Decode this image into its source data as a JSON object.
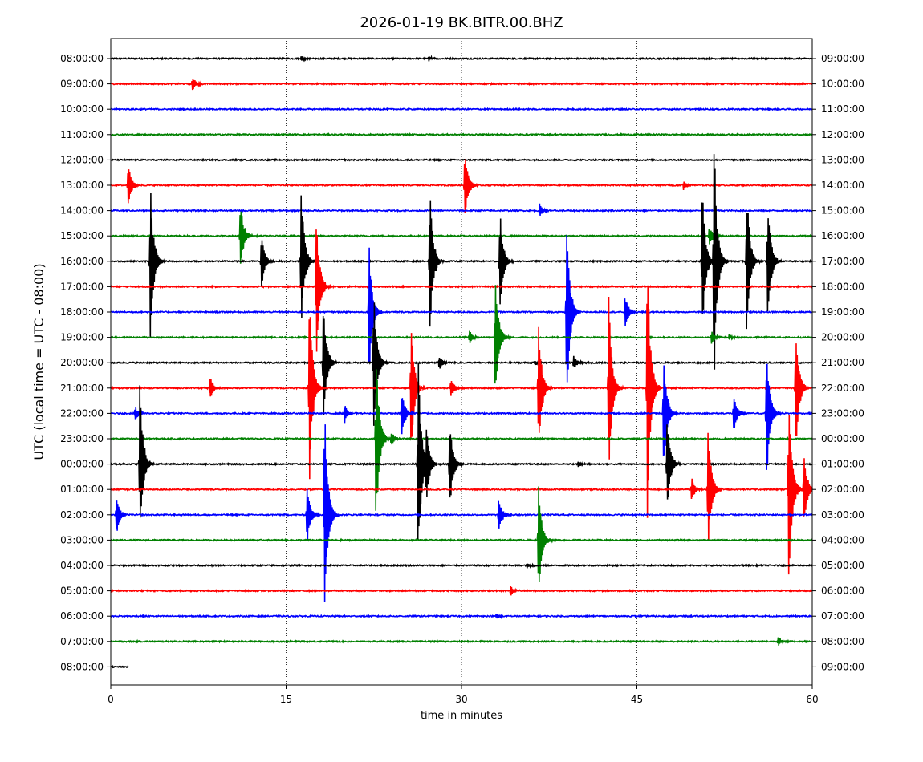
{
  "chart_data": {
    "type": "line",
    "title": "2026-01-19 BK.BITR.00.BHZ",
    "xlabel": "time in minutes",
    "ylabel": "UTC (local time = UTC - 08:00)",
    "xlim": [
      0,
      60
    ],
    "xticks": [
      "0",
      "15",
      "30",
      "45",
      "60"
    ],
    "grid": "vertical dotted at x-ticks",
    "trace_colors": [
      "#000000",
      "#ff0000",
      "#0000ff",
      "#008000"
    ],
    "rows": [
      {
        "left": "08:00:00",
        "right": "09:00:00",
        "events": [
          {
            "t": 16.3,
            "amp": 0.1
          },
          {
            "t": 27.2,
            "amp": 0.1
          }
        ]
      },
      {
        "left": "09:00:00",
        "right": "10:00:00",
        "events": [
          {
            "t": 7.0,
            "amp": 0.3
          }
        ]
      },
      {
        "left": "10:00:00",
        "right": "11:00:00",
        "events": []
      },
      {
        "left": "11:00:00",
        "right": "12:00:00",
        "events": []
      },
      {
        "left": "12:00:00",
        "right": "13:00:00",
        "events": []
      },
      {
        "left": "13:00:00",
        "right": "14:00:00",
        "events": [
          {
            "t": 1.5,
            "amp": 0.9
          },
          {
            "t": 30.3,
            "amp": 1.4
          },
          {
            "t": 49.0,
            "amp": 0.2
          }
        ]
      },
      {
        "left": "14:00:00",
        "right": "15:00:00",
        "events": [
          {
            "t": 36.7,
            "amp": 0.3
          }
        ]
      },
      {
        "left": "15:00:00",
        "right": "16:00:00",
        "events": [
          {
            "t": 11.1,
            "amp": 1.4
          },
          {
            "t": 51.2,
            "amp": 0.4
          }
        ]
      },
      {
        "left": "16:00:00",
        "right": "17:00:00",
        "events": [
          {
            "t": 3.4,
            "amp": 3.2
          },
          {
            "t": 12.9,
            "amp": 1.1
          },
          {
            "t": 16.3,
            "amp": 3.0
          },
          {
            "t": 27.3,
            "amp": 3.0
          },
          {
            "t": 33.3,
            "amp": 2.0
          },
          {
            "t": 50.6,
            "amp": 3.0
          },
          {
            "t": 51.6,
            "amp": 5.1
          },
          {
            "t": 54.4,
            "amp": 3.0
          },
          {
            "t": 56.2,
            "amp": 2.5
          }
        ]
      },
      {
        "left": "17:00:00",
        "right": "18:00:00",
        "events": [
          {
            "t": 17.6,
            "amp": 3.0
          }
        ]
      },
      {
        "left": "18:00:00",
        "right": "19:00:00",
        "events": [
          {
            "t": 22.1,
            "amp": 2.7
          },
          {
            "t": 39.0,
            "amp": 3.9
          },
          {
            "t": 44.0,
            "amp": 0.7
          }
        ]
      },
      {
        "left": "19:00:00",
        "right": "20:00:00",
        "events": [
          {
            "t": 30.7,
            "amp": 0.3
          },
          {
            "t": 32.9,
            "amp": 2.7
          },
          {
            "t": 51.4,
            "amp": 0.3
          },
          {
            "t": 52.9,
            "amp": 0.1
          }
        ]
      },
      {
        "left": "20:00:00",
        "right": "21:00:00",
        "events": [
          {
            "t": 18.2,
            "amp": 2.6
          },
          {
            "t": 22.5,
            "amp": 2.9
          },
          {
            "t": 28.1,
            "amp": 0.3
          },
          {
            "t": 36.3,
            "amp": 0.1
          },
          {
            "t": 39.6,
            "amp": 0.3
          }
        ]
      },
      {
        "left": "21:00:00",
        "right": "22:00:00",
        "events": [
          {
            "t": 8.5,
            "amp": 0.5
          },
          {
            "t": 17.0,
            "amp": 3.9
          },
          {
            "t": 25.7,
            "amp": 2.6
          },
          {
            "t": 29.1,
            "amp": 0.4
          },
          {
            "t": 36.6,
            "amp": 2.8
          },
          {
            "t": 42.6,
            "amp": 3.8
          },
          {
            "t": 45.9,
            "amp": 5.6
          },
          {
            "t": 58.6,
            "amp": 2.6
          }
        ]
      },
      {
        "left": "22:00:00",
        "right": "23:00:00",
        "events": [
          {
            "t": 2.1,
            "amp": 0.3
          },
          {
            "t": 20.0,
            "amp": 0.4
          },
          {
            "t": 24.9,
            "amp": 1.0
          },
          {
            "t": 47.3,
            "amp": 2.4
          },
          {
            "t": 53.3,
            "amp": 0.8
          },
          {
            "t": 56.1,
            "amp": 3.0
          }
        ]
      },
      {
        "left": "23:00:00",
        "right": "00:00:00",
        "events": [
          {
            "t": 22.7,
            "amp": 3.7
          },
          {
            "t": 24.0,
            "amp": 0.3
          }
        ]
      },
      {
        "left": "00:00:00",
        "right": "01:00:00",
        "events": [
          {
            "t": 2.5,
            "amp": 3.3
          },
          {
            "t": 26.3,
            "amp": 4.3
          },
          {
            "t": 27.0,
            "amp": 1.3
          },
          {
            "t": 29.0,
            "amp": 1.9
          },
          {
            "t": 47.6,
            "amp": 2.0
          },
          {
            "t": 40.0,
            "amp": 0.1
          }
        ]
      },
      {
        "left": "01:00:00",
        "right": "02:00:00",
        "events": [
          {
            "t": 49.7,
            "amp": 0.5
          },
          {
            "t": 51.1,
            "amp": 2.6
          },
          {
            "t": 58.0,
            "amp": 4.0
          },
          {
            "t": 59.3,
            "amp": 1.5
          }
        ]
      },
      {
        "left": "02:00:00",
        "right": "03:00:00",
        "events": [
          {
            "t": 0.5,
            "amp": 0.8
          },
          {
            "t": 16.8,
            "amp": 1.2
          },
          {
            "t": 18.3,
            "amp": 4.6
          },
          {
            "t": 33.2,
            "amp": 0.7
          }
        ]
      },
      {
        "left": "03:00:00",
        "right": "04:00:00",
        "events": [
          {
            "t": 36.6,
            "amp": 2.3
          }
        ]
      },
      {
        "left": "04:00:00",
        "right": "05:00:00",
        "events": [
          {
            "t": 35.6,
            "amp": 0.1
          }
        ]
      },
      {
        "left": "05:00:00",
        "right": "06:00:00",
        "events": [
          {
            "t": 34.2,
            "amp": 0.2
          }
        ]
      },
      {
        "left": "06:00:00",
        "right": "07:00:00",
        "events": [
          {
            "t": 33.0,
            "amp": 0.1
          }
        ]
      },
      {
        "left": "07:00:00",
        "right": "08:00:00",
        "events": [
          {
            "t": 57.1,
            "amp": 0.2
          }
        ]
      },
      {
        "left": "08:00:00",
        "right": "09:00:00",
        "events": [],
        "end_minute": 1.5
      }
    ]
  }
}
